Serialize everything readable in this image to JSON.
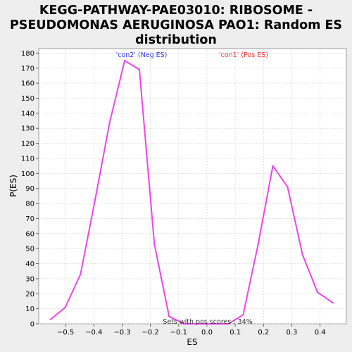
{
  "chart_data": {
    "type": "line",
    "title_lines": [
      "KEGG-PATHWAY-PAE03010: RIBOSOME -",
      "PSEUDOMONAS AERUGINOSA PAO1: Random ES",
      "distribution"
    ],
    "xlabel": "ES",
    "ylabel": "P(ES)",
    "xlim": [
      -0.595,
      0.493
    ],
    "ylim": [
      0,
      183
    ],
    "xticks": [
      -0.5,
      -0.4,
      -0.3,
      -0.2,
      -0.1,
      0.0,
      0.1,
      0.2,
      0.3,
      0.4
    ],
    "xtick_labels": [
      "−0.5",
      "−0.4",
      "−0.3",
      "−0.2",
      "−0.1",
      "0.0",
      "0.1",
      "0.2",
      "0.3",
      "0.4"
    ],
    "yticks": [
      0,
      10,
      20,
      30,
      40,
      50,
      60,
      70,
      80,
      90,
      100,
      110,
      120,
      130,
      140,
      150,
      160,
      170,
      180
    ],
    "grid": true,
    "line_color": "#ee44ee",
    "series": [
      {
        "x": [
          -0.553,
          -0.501,
          -0.447,
          -0.395,
          -0.344,
          -0.291,
          -0.239,
          -0.186,
          -0.134,
          -0.082,
          -0.029,
          0.023,
          0.076,
          0.128,
          0.181,
          0.233,
          0.285,
          0.338,
          0.391,
          0.445
        ],
        "values": [
          3,
          11,
          33,
          83,
          134,
          175,
          169,
          53,
          5,
          0,
          0,
          0,
          0,
          6,
          53,
          105,
          91,
          46,
          21,
          14
        ]
      }
    ],
    "legend": [
      {
        "label": "'con2' (Neg ES)",
        "color": "#3333ee"
      },
      {
        "label": "'con1' (Pos ES)",
        "color": "#ee3333"
      }
    ],
    "annotation": "Sets with pos scores : 34%"
  }
}
